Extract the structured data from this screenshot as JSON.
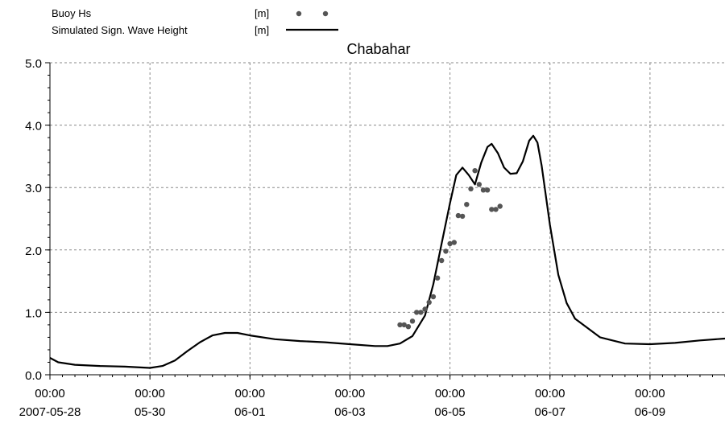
{
  "chart_data": {
    "type": "line",
    "title": "Chabahar",
    "xlabel": "",
    "ylabel": "",
    "ylim": [
      0,
      5
    ],
    "xlim": [
      "2007-05-28T00:00",
      "2007-06-10T12:00"
    ],
    "grid": true,
    "legend_position": "top-left",
    "yticks": [
      "0.0",
      "1.0",
      "2.0",
      "3.0",
      "4.0",
      "5.0"
    ],
    "xticks": [
      {
        "time": "00:00",
        "date": "2007-05-28"
      },
      {
        "time": "00:00",
        "date": "05-30"
      },
      {
        "time": "00:00",
        "date": "06-01"
      },
      {
        "time": "00:00",
        "date": "06-03"
      },
      {
        "time": "00:00",
        "date": "06-05"
      },
      {
        "time": "00:00",
        "date": "06-07"
      },
      {
        "time": "00:00",
        "date": "06-09"
      }
    ],
    "series": [
      {
        "name": "Buoy Hs",
        "unit": "[m]",
        "kind": "scatter",
        "color": "#555555",
        "points": [
          [
            "2007-06-04T00:00",
            0.8
          ],
          [
            "2007-06-04T02:00",
            0.8
          ],
          [
            "2007-06-04T04:00",
            0.77
          ],
          [
            "2007-06-04T06:00",
            0.86
          ],
          [
            "2007-06-04T08:00",
            1.0
          ],
          [
            "2007-06-04T10:00",
            1.0
          ],
          [
            "2007-06-04T12:00",
            1.05
          ],
          [
            "2007-06-04T14:00",
            1.16
          ],
          [
            "2007-06-04T16:00",
            1.25
          ],
          [
            "2007-06-04T18:00",
            1.55
          ],
          [
            "2007-06-04T20:00",
            1.83
          ],
          [
            "2007-06-04T22:00",
            1.98
          ],
          [
            "2007-06-05T00:00",
            2.1
          ],
          [
            "2007-06-05T02:00",
            2.12
          ],
          [
            "2007-06-05T04:00",
            2.55
          ],
          [
            "2007-06-05T06:00",
            2.54
          ],
          [
            "2007-06-05T08:00",
            2.73
          ],
          [
            "2007-06-05T10:00",
            2.98
          ],
          [
            "2007-06-05T12:00",
            3.27
          ],
          [
            "2007-06-05T14:00",
            3.05
          ],
          [
            "2007-06-05T16:00",
            2.96
          ],
          [
            "2007-06-05T18:00",
            2.96
          ],
          [
            "2007-06-05T20:00",
            2.65
          ],
          [
            "2007-06-05T22:00",
            2.65
          ],
          [
            "2007-06-06T00:00",
            2.7
          ]
        ]
      },
      {
        "name": "Simulated Sign. Wave Height",
        "unit": "[m]",
        "kind": "line",
        "color": "#000000",
        "points": [
          [
            "2007-05-28T00:00",
            0.27
          ],
          [
            "2007-05-28T04:00",
            0.2
          ],
          [
            "2007-05-28T12:00",
            0.16
          ],
          [
            "2007-05-29T00:00",
            0.14
          ],
          [
            "2007-05-29T12:00",
            0.13
          ],
          [
            "2007-05-30T00:00",
            0.11
          ],
          [
            "2007-05-30T06:00",
            0.14
          ],
          [
            "2007-05-30T12:00",
            0.23
          ],
          [
            "2007-05-30T18:00",
            0.38
          ],
          [
            "2007-05-31T00:00",
            0.52
          ],
          [
            "2007-05-31T06:00",
            0.63
          ],
          [
            "2007-05-31T12:00",
            0.67
          ],
          [
            "2007-05-31T18:00",
            0.67
          ],
          [
            "2007-06-01T00:00",
            0.63
          ],
          [
            "2007-06-01T12:00",
            0.57
          ],
          [
            "2007-06-02T00:00",
            0.54
          ],
          [
            "2007-06-02T12:00",
            0.52
          ],
          [
            "2007-06-03T00:00",
            0.49
          ],
          [
            "2007-06-03T12:00",
            0.46
          ],
          [
            "2007-06-03T18:00",
            0.46
          ],
          [
            "2007-06-04T00:00",
            0.5
          ],
          [
            "2007-06-04T06:00",
            0.62
          ],
          [
            "2007-06-04T12:00",
            0.95
          ],
          [
            "2007-06-04T16:00",
            1.45
          ],
          [
            "2007-06-04T20:00",
            2.1
          ],
          [
            "2007-06-05T00:00",
            2.75
          ],
          [
            "2007-06-05T03:00",
            3.2
          ],
          [
            "2007-06-05T06:00",
            3.32
          ],
          [
            "2007-06-05T09:00",
            3.2
          ],
          [
            "2007-06-05T12:00",
            3.05
          ],
          [
            "2007-06-05T15:00",
            3.4
          ],
          [
            "2007-06-05T18:00",
            3.65
          ],
          [
            "2007-06-05T20:00",
            3.7
          ],
          [
            "2007-06-05T23:00",
            3.55
          ],
          [
            "2007-06-06T02:00",
            3.32
          ],
          [
            "2007-06-06T05:00",
            3.22
          ],
          [
            "2007-06-06T08:00",
            3.23
          ],
          [
            "2007-06-06T11:00",
            3.42
          ],
          [
            "2007-06-06T14:00",
            3.75
          ],
          [
            "2007-06-06T16:00",
            3.83
          ],
          [
            "2007-06-06T18:00",
            3.72
          ],
          [
            "2007-06-06T20:00",
            3.35
          ],
          [
            "2007-06-07T00:00",
            2.4
          ],
          [
            "2007-06-07T04:00",
            1.6
          ],
          [
            "2007-06-07T08:00",
            1.15
          ],
          [
            "2007-06-07T12:00",
            0.9
          ],
          [
            "2007-06-08T00:00",
            0.6
          ],
          [
            "2007-06-08T12:00",
            0.5
          ],
          [
            "2007-06-09T00:00",
            0.49
          ],
          [
            "2007-06-09T12:00",
            0.51
          ],
          [
            "2007-06-10T00:00",
            0.55
          ],
          [
            "2007-06-10T12:00",
            0.58
          ]
        ]
      }
    ]
  }
}
